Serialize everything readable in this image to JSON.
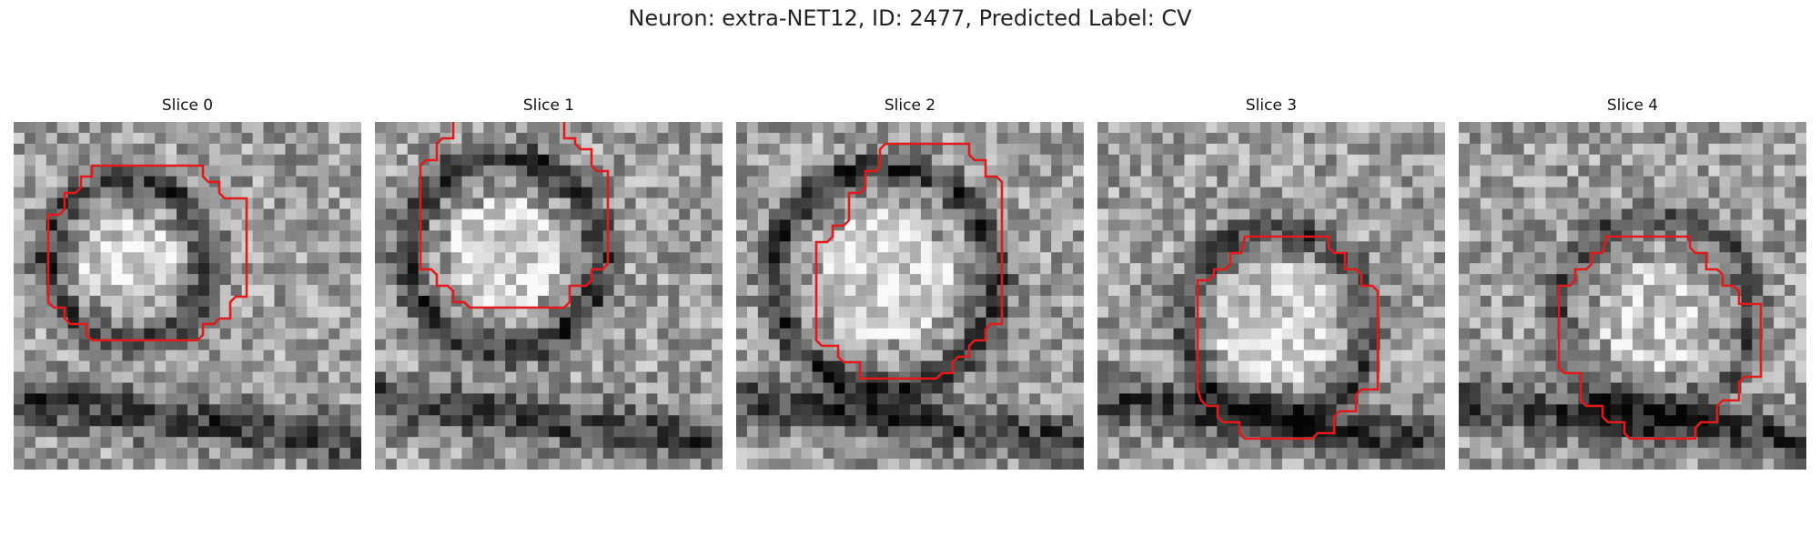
{
  "figure": {
    "title": "Neuron: extra-NET12, ID: 2477, Predicted Label: CV",
    "contour_color": "#e31a1c",
    "colormap": "gray"
  },
  "panels": [
    {
      "title": "Slice 0",
      "seed": 11,
      "ring_cx": 0.33,
      "ring_cy": 0.4,
      "ring_r": 0.23,
      "inner_r": 0.13,
      "contrast": 0.9
    },
    {
      "title": "Slice 1",
      "seed": 23,
      "ring_cx": 0.37,
      "ring_cy": 0.38,
      "ring_r": 0.28,
      "inner_r": 0.16,
      "contrast": 1.0
    },
    {
      "title": "Slice 2",
      "seed": 37,
      "ring_cx": 0.43,
      "ring_cy": 0.45,
      "ring_r": 0.32,
      "inner_r": 0.19,
      "contrast": 1.0
    },
    {
      "title": "Slice 3",
      "seed": 51,
      "ring_cx": 0.52,
      "ring_cy": 0.58,
      "ring_r": 0.27,
      "inner_r": 0.18,
      "contrast": 0.8
    },
    {
      "title": "Slice 4",
      "seed": 67,
      "ring_cx": 0.57,
      "ring_cy": 0.55,
      "ring_r": 0.28,
      "inner_r": 0.16,
      "contrast": 0.7
    }
  ]
}
